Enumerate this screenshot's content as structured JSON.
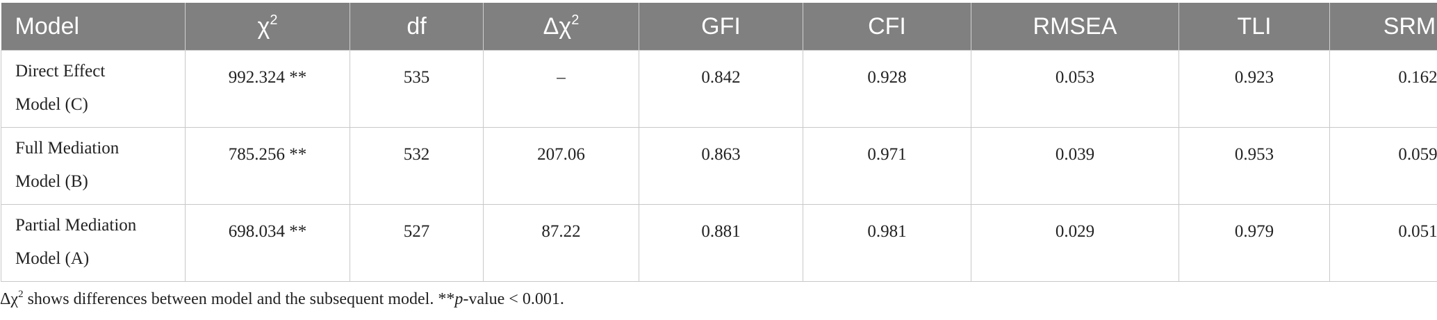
{
  "table": {
    "headers": [
      {
        "text": "Model",
        "sup": ""
      },
      {
        "text": "χ",
        "sup": "2"
      },
      {
        "text": "df",
        "sup": ""
      },
      {
        "text": "Δχ",
        "sup": "2"
      },
      {
        "text": "GFI",
        "sup": ""
      },
      {
        "text": "CFI",
        "sup": ""
      },
      {
        "text": "RMSEA",
        "sup": ""
      },
      {
        "text": "TLI",
        "sup": ""
      },
      {
        "text": "SRMR",
        "sup": ""
      }
    ],
    "rows": [
      {
        "model_line1": "Direct Effect",
        "model_line2": "Model (C)",
        "chi2": "992.324 **",
        "df": "535",
        "delta_chi2": "–",
        "gfi": "0.842",
        "cfi": "0.928",
        "rmsea": "0.053",
        "tli": "0.923",
        "srmr": "0.162"
      },
      {
        "model_line1": "Full Mediation",
        "model_line2": "Model (B)",
        "chi2": "785.256 **",
        "df": "532",
        "delta_chi2": "207.06",
        "gfi": "0.863",
        "cfi": "0.971",
        "rmsea": "0.039",
        "tli": "0.953",
        "srmr": "0.059"
      },
      {
        "model_line1": "Partial Mediation",
        "model_line2": "Model (A)",
        "chi2": "698.034 **",
        "df": "527",
        "delta_chi2": "87.22",
        "gfi": "0.881",
        "cfi": "0.981",
        "rmsea": "0.029",
        "tli": "0.979",
        "srmr": "0.051"
      }
    ]
  },
  "footnote": {
    "delta_symbol": "Δχ",
    "delta_sup": "2",
    "text_main": " shows differences between model and the subsequent model. **",
    "p_italic": "p",
    "text_end": "-value < 0.001."
  }
}
